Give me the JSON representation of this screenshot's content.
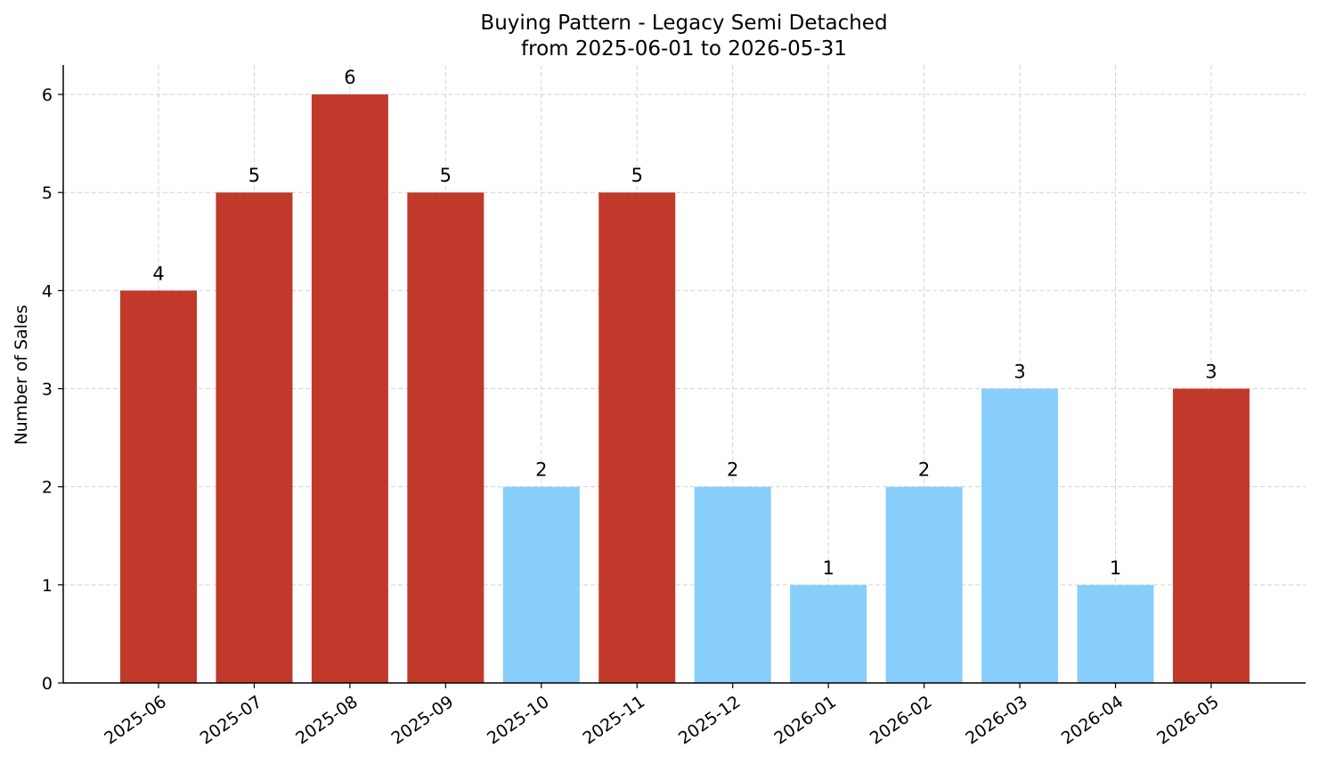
{
  "chart_data": {
    "type": "bar",
    "title": "Buying Pattern - Legacy Semi Detached",
    "subtitle": "from 2025-06-01 to 2026-05-31",
    "xlabel": "",
    "ylabel": "Number of Sales",
    "categories": [
      "2025-06",
      "2025-07",
      "2025-08",
      "2025-09",
      "2025-10",
      "2025-11",
      "2025-12",
      "2026-01",
      "2026-02",
      "2026-03",
      "2026-04",
      "2026-05"
    ],
    "values": [
      4,
      5,
      6,
      5,
      2,
      5,
      2,
      1,
      2,
      3,
      1,
      3
    ],
    "bar_colors": [
      "#c0392b",
      "#c0392b",
      "#c0392b",
      "#c0392b",
      "#87cefa",
      "#c0392b",
      "#87cefa",
      "#87cefa",
      "#87cefa",
      "#87cefa",
      "#87cefa",
      "#c0392b"
    ],
    "yticks": [
      0,
      1,
      2,
      3,
      4,
      5,
      6
    ],
    "ylim": [
      0,
      6.3
    ],
    "grid": true,
    "data_labels": true,
    "colors": {
      "high": "#c0392b",
      "low": "#87cefa",
      "grid": "#d3d3d3",
      "axis": "#000000"
    }
  }
}
